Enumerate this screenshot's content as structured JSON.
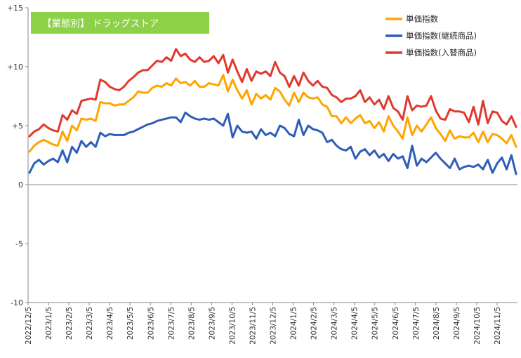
{
  "chart_data": {
    "type": "line",
    "title": "【業態別】 ドラッグストア",
    "ylim": [
      -10,
      15
    ],
    "y_ticks": [
      {
        "value": 15,
        "label": "+15"
      },
      {
        "value": 10,
        "label": "+10"
      },
      {
        "value": 5,
        "label": "+5"
      },
      {
        "value": 0,
        "label": "0"
      },
      {
        "value": -5,
        "label": "-5"
      },
      {
        "value": -10,
        "label": "-10"
      }
    ],
    "x_tick_labels": [
      "2022/12/5",
      "2023/1/5",
      "2023/2/5",
      "2023/3/5",
      "2023/4/5",
      "2023/5/5",
      "2023/6/5",
      "2023/7/5",
      "2023/8/5",
      "2023/9/5",
      "2023/10/5",
      "2023/11/5",
      "2023/12/5",
      "2024/1/5",
      "2024/2/5",
      "2024/3/5",
      "2024/4/5",
      "2024/5/5",
      "2024/6/5",
      "2024/7/5",
      "2024/8/5",
      "2024/9/5",
      "2024/10/5",
      "2024/11/5"
    ],
    "grid": false,
    "legend_position": "top-right",
    "series": [
      {
        "name": "単価指数",
        "color": "#FFA500",
        "values": [
          2.8,
          3.3,
          3.6,
          3.8,
          3.6,
          3.4,
          3.3,
          4.5,
          3.7,
          5.0,
          4.6,
          5.6,
          5.5,
          5.6,
          5.4,
          7.0,
          6.9,
          6.9,
          6.7,
          6.8,
          6.8,
          7.1,
          7.4,
          7.9,
          7.8,
          7.8,
          8.2,
          8.4,
          8.3,
          8.6,
          8.4,
          9.0,
          8.6,
          8.7,
          8.4,
          8.8,
          8.3,
          8.3,
          8.6,
          8.5,
          8.4,
          9.3,
          7.9,
          8.9,
          8.0,
          7.3,
          8.0,
          6.8,
          7.7,
          7.3,
          7.6,
          7.2,
          8.2,
          7.9,
          7.2,
          6.7,
          7.8,
          7.0,
          7.8,
          7.4,
          7.3,
          7.4,
          6.8,
          6.6,
          5.8,
          5.8,
          5.2,
          5.7,
          5.2,
          5.6,
          5.9,
          5.2,
          5.4,
          4.8,
          5.3,
          4.5,
          5.8,
          5.0,
          4.5,
          3.9,
          5.7,
          4.2,
          5.0,
          4.5,
          5.1,
          5.7,
          4.8,
          4.3,
          3.7,
          4.6,
          3.9,
          4.1,
          4.0,
          4.0,
          4.4,
          3.6,
          4.5,
          3.6,
          4.3,
          4.2,
          3.9,
          3.5,
          4.2,
          3.2
        ]
      },
      {
        "name": "単価指数(継続商品)",
        "color": "#2E5EB8",
        "values": [
          1.0,
          1.8,
          2.1,
          1.7,
          2.0,
          2.2,
          1.9,
          2.9,
          1.9,
          3.2,
          2.7,
          3.7,
          3.2,
          3.6,
          3.2,
          4.4,
          4.1,
          4.3,
          4.2,
          4.2,
          4.2,
          4.4,
          4.5,
          4.7,
          4.9,
          5.1,
          5.2,
          5.4,
          5.5,
          5.6,
          5.7,
          5.7,
          5.3,
          6.1,
          5.8,
          5.6,
          5.5,
          5.6,
          5.5,
          5.6,
          5.3,
          5.0,
          6.0,
          4.0,
          5.0,
          4.5,
          4.4,
          4.5,
          3.9,
          4.7,
          4.2,
          4.4,
          4.1,
          5.0,
          4.8,
          4.3,
          4.1,
          5.5,
          4.2,
          5.0,
          4.7,
          4.6,
          4.4,
          3.6,
          3.8,
          3.3,
          3.0,
          2.9,
          3.2,
          2.2,
          2.8,
          3.0,
          2.5,
          2.9,
          2.3,
          2.6,
          2.0,
          2.6,
          2.2,
          2.4,
          1.4,
          3.3,
          1.6,
          2.2,
          1.9,
          2.3,
          2.7,
          2.2,
          1.8,
          1.4,
          2.2,
          1.3,
          1.5,
          1.6,
          1.5,
          1.7,
          1.3,
          2.1,
          1.0,
          1.8,
          2.3,
          1.3,
          2.5,
          0.9
        ]
      },
      {
        "name": "単価指数(入替商品)",
        "color": "#E03A2E",
        "values": [
          4.1,
          4.5,
          4.7,
          5.1,
          4.8,
          4.6,
          4.5,
          5.9,
          5.5,
          6.3,
          6.0,
          7.1,
          7.2,
          7.3,
          7.2,
          8.9,
          8.7,
          8.3,
          8.1,
          8.0,
          8.3,
          8.8,
          9.1,
          9.5,
          9.7,
          9.7,
          10.1,
          10.5,
          10.4,
          10.8,
          10.5,
          11.5,
          10.9,
          11.1,
          10.6,
          10.4,
          10.8,
          10.4,
          10.5,
          10.9,
          10.3,
          11.0,
          9.5,
          10.6,
          9.6,
          8.7,
          9.8,
          8.8,
          9.6,
          9.4,
          9.6,
          9.2,
          10.4,
          9.5,
          9.2,
          8.3,
          9.2,
          8.4,
          9.5,
          8.8,
          8.4,
          8.8,
          8.3,
          8.2,
          7.6,
          7.4,
          7.0,
          7.3,
          7.3,
          7.5,
          8.0,
          7.0,
          7.4,
          6.8,
          7.2,
          6.4,
          7.5,
          6.5,
          6.2,
          5.5,
          7.5,
          6.3,
          6.7,
          6.6,
          6.7,
          7.5,
          6.3,
          5.6,
          5.5,
          6.4,
          6.2,
          6.2,
          6.1,
          5.3,
          6.6,
          5.1,
          7.1,
          5.2,
          6.2,
          6.1,
          5.4,
          5.1,
          5.8,
          4.9
        ]
      }
    ]
  }
}
